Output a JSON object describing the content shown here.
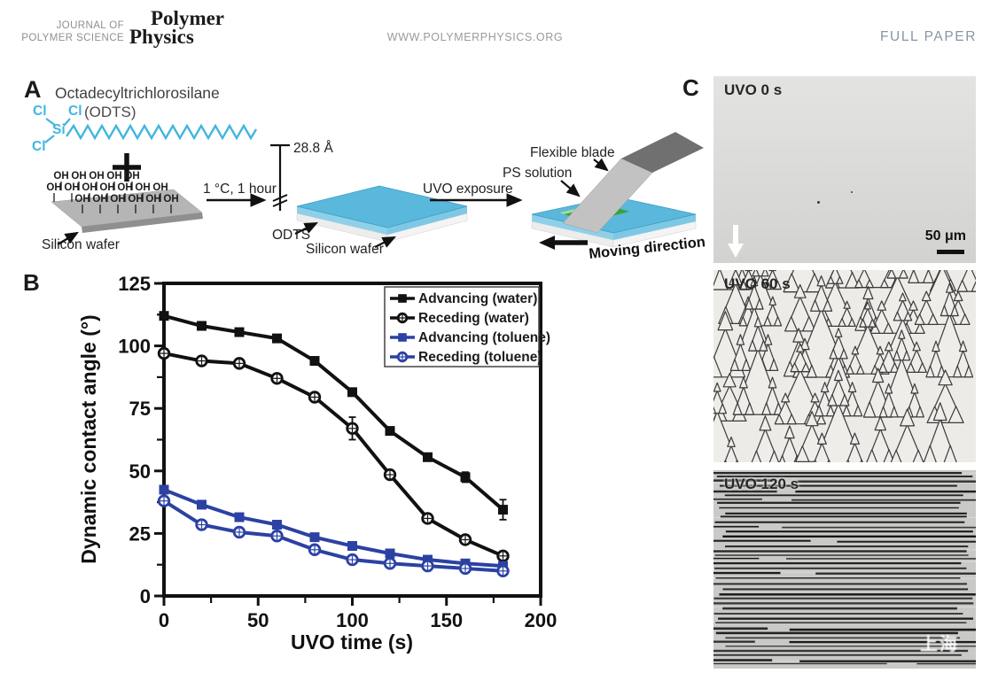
{
  "header": {
    "journal_small_line1": "JOURNAL OF",
    "journal_small_line2": "POLYMER SCIENCE",
    "logo_line1": "Polymer",
    "logo_line2": "Physics",
    "website": "WWW.POLYMERPHYSICS.ORG",
    "article_type": "FULL PAPER"
  },
  "panel_a": {
    "label": "A",
    "molecule_title": "Octadecyltrichlorosilane",
    "molecule_abbr": "(ODTS)",
    "atom_si": "Si",
    "atom_cl": "Cl",
    "plus_sign": "+",
    "oh_label": "OH",
    "silicon_wafer_label": "Silicon wafer",
    "reaction_conditions": "1 °C, 1 hour",
    "thickness_label": "28.8 Å",
    "odts_layer_label": "ODTS",
    "silicon_wafer_label2": "Silicon wafer",
    "uvo_arrow_label": "UVO exposure",
    "flexible_blade_label": "Flexible blade",
    "ps_solution_label": "PS solution",
    "moving_direction_label": "Moving direction",
    "colors": {
      "molecule_cyan": "#41b6de",
      "slab_blue": "#5ab8dc",
      "ps_green": "#3ba33b",
      "blade_light": "#c2c2c2",
      "blade_dark": "#707070",
      "wafer_gray": "#b5b5b5"
    }
  },
  "panel_b": {
    "label": "B"
  },
  "chart_data": {
    "type": "line",
    "title": "",
    "xlabel": "UVO time (s)",
    "ylabel": "Dynamic contact angle (°)",
    "xlim": [
      0,
      200
    ],
    "ylim": [
      0,
      125
    ],
    "xticks": [
      0,
      50,
      100,
      150,
      200
    ],
    "minor_xticks": [
      25,
      75,
      125,
      175
    ],
    "yticks": [
      0,
      25,
      50,
      75,
      100,
      125
    ],
    "grid": false,
    "legend_position": "top-right",
    "x": [
      0,
      20,
      40,
      60,
      80,
      100,
      120,
      140,
      160,
      180
    ],
    "series": [
      {
        "name": "Advancing (water)",
        "color": "#111111",
        "marker": "square-filled",
        "values": [
          112,
          108,
          105.5,
          103,
          94,
          81.5,
          66,
          55.5,
          47.5,
          34.5
        ],
        "errors": [
          0,
          0,
          0,
          0,
          0,
          0,
          0,
          0,
          2,
          4
        ]
      },
      {
        "name": "Receding (water)",
        "color": "#111111",
        "marker": "circle-open-cross",
        "values": [
          97,
          94,
          93,
          87,
          79.5,
          67,
          48.5,
          31,
          22.5,
          16
        ],
        "errors": [
          1.5,
          1.5,
          1.5,
          1.5,
          1.5,
          4.5,
          1.5,
          0,
          0,
          0
        ]
      },
      {
        "name": "Advancing (toluene)",
        "color": "#2b41a3",
        "marker": "square-filled",
        "values": [
          42.5,
          36.5,
          31.5,
          28.5,
          23.5,
          20,
          17,
          14.5,
          13,
          12
        ],
        "errors": [
          0,
          0,
          0,
          0,
          0,
          0,
          0,
          0,
          0,
          0
        ]
      },
      {
        "name": "Receding (toluene)",
        "color": "#2b41a3",
        "marker": "circle-open-cross",
        "values": [
          38,
          28.5,
          25.5,
          24,
          18.5,
          14.5,
          13,
          12,
          11,
          10
        ],
        "errors": [
          1.5,
          1.5,
          1.5,
          1.5,
          1.5,
          1.5,
          1.5,
          1.5,
          1.5,
          1.5
        ]
      }
    ]
  },
  "panel_c": {
    "label": "C",
    "micrographs": [
      {
        "label": "UVO 0 s",
        "scale_bar": "50 μm"
      },
      {
        "label": "UVO 60 s"
      },
      {
        "label": "UVO 120 s"
      }
    ],
    "watermark": "上海"
  }
}
